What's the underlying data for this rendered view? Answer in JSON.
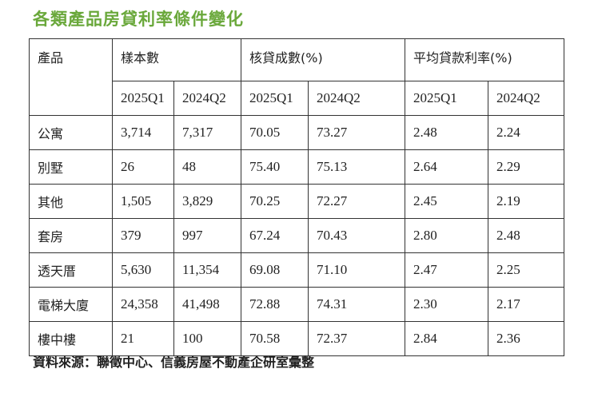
{
  "title": "各類產品房貸利率條件變化",
  "headers": {
    "product": "產品",
    "sample_count": "樣本數",
    "loan_ratio": "核貸成數(%)",
    "avg_rate": "平均貸款利率(%)",
    "periods": [
      "2025Q1",
      "2024Q2",
      "2025Q1",
      "2024Q2",
      "2025Q1",
      "2024Q2"
    ]
  },
  "rows": [
    {
      "product": "公寓",
      "values": [
        "3,714",
        "7,317",
        "70.05",
        "73.27",
        "2.48",
        "2.24"
      ]
    },
    {
      "product": "別墅",
      "values": [
        "26",
        "48",
        "75.40",
        "75.13",
        "2.64",
        "2.29"
      ]
    },
    {
      "product": "其他",
      "values": [
        "1,505",
        "3,829",
        "70.25",
        "72.27",
        "2.45",
        "2.19"
      ]
    },
    {
      "product": "套房",
      "values": [
        "379",
        "997",
        "67.24",
        "70.43",
        "2.80",
        "2.48"
      ]
    },
    {
      "product": "透天厝",
      "values": [
        "5,630",
        "11,354",
        "69.08",
        "71.10",
        "2.47",
        "2.25"
      ]
    },
    {
      "product": "電梯大廈",
      "values": [
        "24,358",
        "41,498",
        "72.88",
        "74.31",
        "2.30",
        "2.17"
      ]
    },
    {
      "product": "樓中樓",
      "values": [
        "21",
        "100",
        "70.58",
        "72.37",
        "2.84",
        "2.36"
      ]
    }
  ],
  "source": "資料來源：聯徵中心、信義房屋不動產企研室彙整"
}
